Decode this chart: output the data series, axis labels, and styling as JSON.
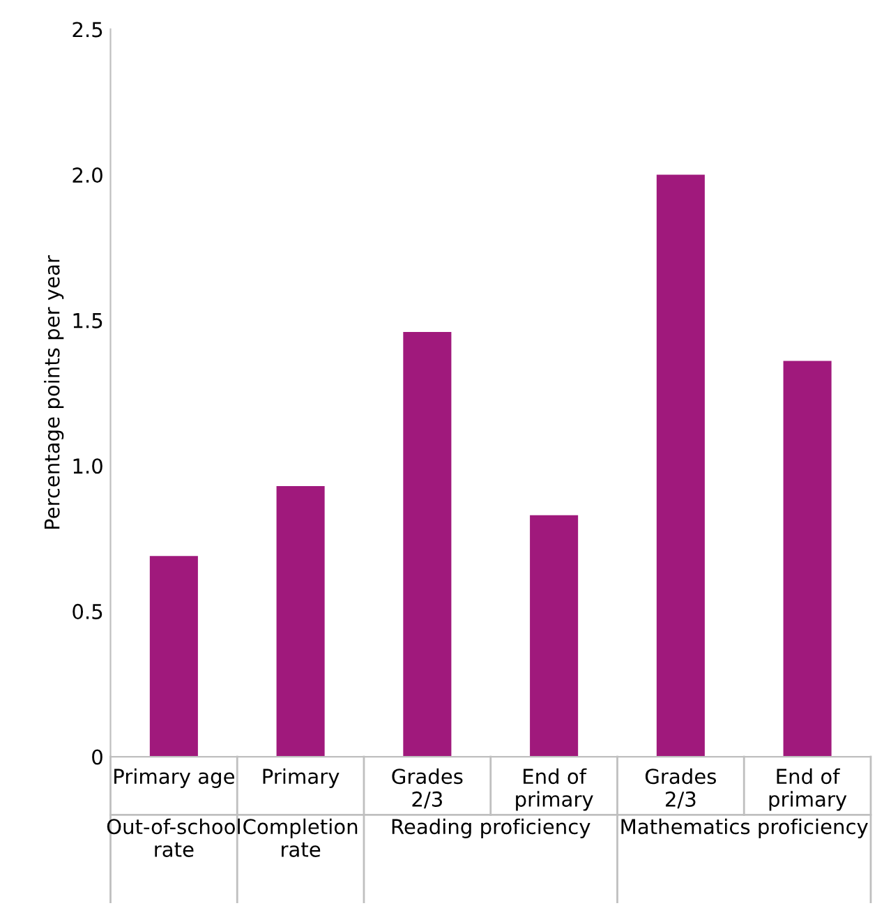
{
  "chart_data": {
    "type": "bar",
    "ylabel": "Percentage points per year",
    "categories": [
      "Primary age",
      "Primary",
      "Grades\n2/3",
      "End of\nprimary",
      "Grades\n2/3",
      "End of\nprimary"
    ],
    "values": [
      0.69,
      0.93,
      1.46,
      0.83,
      2.0,
      1.36
    ],
    "color": "#a0197c",
    "ylim": [
      0,
      2.5
    ],
    "yticks": [
      0,
      {
        "value": 0.5,
        "label": "0.5"
      },
      {
        "value": 1.0,
        "label": "1.0"
      },
      {
        "value": 1.5,
        "label": "1.5"
      },
      {
        "value": 2.0,
        "label": "2.0"
      },
      2.5
    ],
    "annotations": [
      "Out-of-school\nrate",
      "Completion\nrate",
      "Reading proficiency",
      "Mathematics proficiency"
    ],
    "grid": false
  }
}
